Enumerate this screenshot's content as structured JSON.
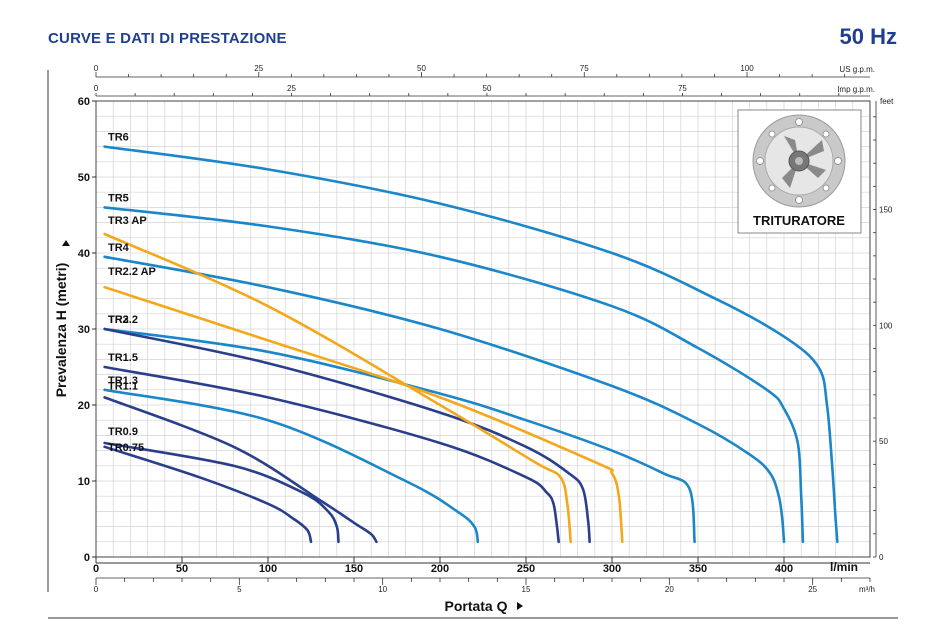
{
  "header": {
    "title": "CURVE E DATI DI PRESTAZIONE",
    "frequency": "50 Hz"
  },
  "image_card": {
    "label": "TRITURATORE"
  },
  "chart_data": {
    "type": "line",
    "xlabel": "Portata Q",
    "ylabel": "Prevalenza H (metri)",
    "x_unit": "l/min",
    "xlim": [
      0,
      450
    ],
    "ylim": [
      0,
      60
    ],
    "x_ticks": [
      0,
      50,
      100,
      150,
      200,
      250,
      300,
      350,
      400
    ],
    "y_ticks": [
      0,
      10,
      20,
      30,
      40,
      50,
      60
    ],
    "secondary_axes": {
      "us_gpm": {
        "unit": "US g.p.m.",
        "ticks": [
          0,
          25,
          50,
          75,
          100
        ]
      },
      "imp_gpm": {
        "unit": "Imp g.p.m.",
        "ticks": [
          0,
          25,
          50,
          75
        ]
      },
      "m3h": {
        "unit": "m³/h",
        "ticks": [
          0,
          5,
          10,
          15,
          20,
          25
        ]
      },
      "feet": {
        "unit": "feet",
        "ticks": [
          0,
          50,
          100,
          150
        ]
      }
    },
    "grid": true,
    "series": [
      {
        "name": "TR6",
        "color": "#1b87c9",
        "x": [
          5,
          100,
          200,
          300,
          360,
          400,
          420,
          425,
          428,
          430,
          431
        ],
        "y": [
          54,
          51,
          46.5,
          40,
          34,
          29,
          25,
          20,
          12,
          5,
          2
        ]
      },
      {
        "name": "TR5",
        "color": "#1b87c9",
        "x": [
          5,
          100,
          200,
          300,
          350,
          390,
          400,
          408,
          410,
          411
        ],
        "y": [
          46,
          43.5,
          39.5,
          33,
          27.5,
          22,
          19.5,
          15,
          8,
          2
        ]
      },
      {
        "name": "TR4",
        "color": "#1b87c9",
        "x": [
          5,
          100,
          200,
          300,
          350,
          380,
          392,
          397,
          399,
          400
        ],
        "y": [
          39.5,
          35.5,
          30,
          22.5,
          17.5,
          13.5,
          11,
          8,
          5,
          2
        ]
      },
      {
        "name": "TR3",
        "color": "#1b87c9",
        "x": [
          5,
          100,
          200,
          250,
          300,
          330,
          345,
          348
        ],
        "y": [
          30,
          27,
          21.5,
          18,
          14,
          11,
          9,
          2
        ]
      },
      {
        "name": "TR2.2",
        "color": "#2a3f8c",
        "x": [
          5,
          100,
          200,
          250,
          275,
          283,
          286,
          287
        ],
        "y": [
          30,
          25.5,
          19,
          14.5,
          11,
          9,
          5,
          2
        ]
      },
      {
        "name": "TR1.5",
        "color": "#2a3f8c",
        "x": [
          5,
          100,
          200,
          250,
          262,
          266,
          268,
          269
        ],
        "y": [
          25,
          21,
          15,
          10.5,
          8.5,
          7,
          4,
          2
        ]
      },
      {
        "name": "TR1.3",
        "color": "#1b87c9",
        "x": [
          5,
          100,
          180,
          210,
          220,
          222
        ],
        "y": [
          22,
          18,
          10,
          6,
          4,
          2
        ]
      },
      {
        "name": "TR1.1",
        "color": "#2a3f8c",
        "x": [
          5,
          80,
          130,
          150,
          160,
          163
        ],
        "y": [
          21,
          14.5,
          7.5,
          4.5,
          3,
          2
        ]
      },
      {
        "name": "TR0.9",
        "color": "#2a3f8c",
        "x": [
          5,
          80,
          120,
          135,
          140,
          141
        ],
        "y": [
          15,
          12,
          8.5,
          6,
          4,
          2
        ]
      },
      {
        "name": "TR0.75",
        "color": "#2a3f8c",
        "x": [
          5,
          60,
          100,
          115,
          123,
          125
        ],
        "y": [
          14.5,
          10.5,
          7,
          5,
          3.5,
          2
        ]
      },
      {
        "name": "TR3 AP",
        "color": "#f3a81c",
        "x": [
          5,
          100,
          200,
          255,
          270,
          274,
          276
        ],
        "y": [
          42.5,
          33,
          20,
          12.5,
          10.5,
          7,
          2
        ]
      },
      {
        "name": "TR2.2 AP",
        "color": "#f3a81c",
        "x": [
          5,
          100,
          200,
          290,
          300,
          304,
          306
        ],
        "y": [
          35.5,
          28.5,
          21,
          12.5,
          11,
          8,
          2
        ]
      }
    ]
  }
}
